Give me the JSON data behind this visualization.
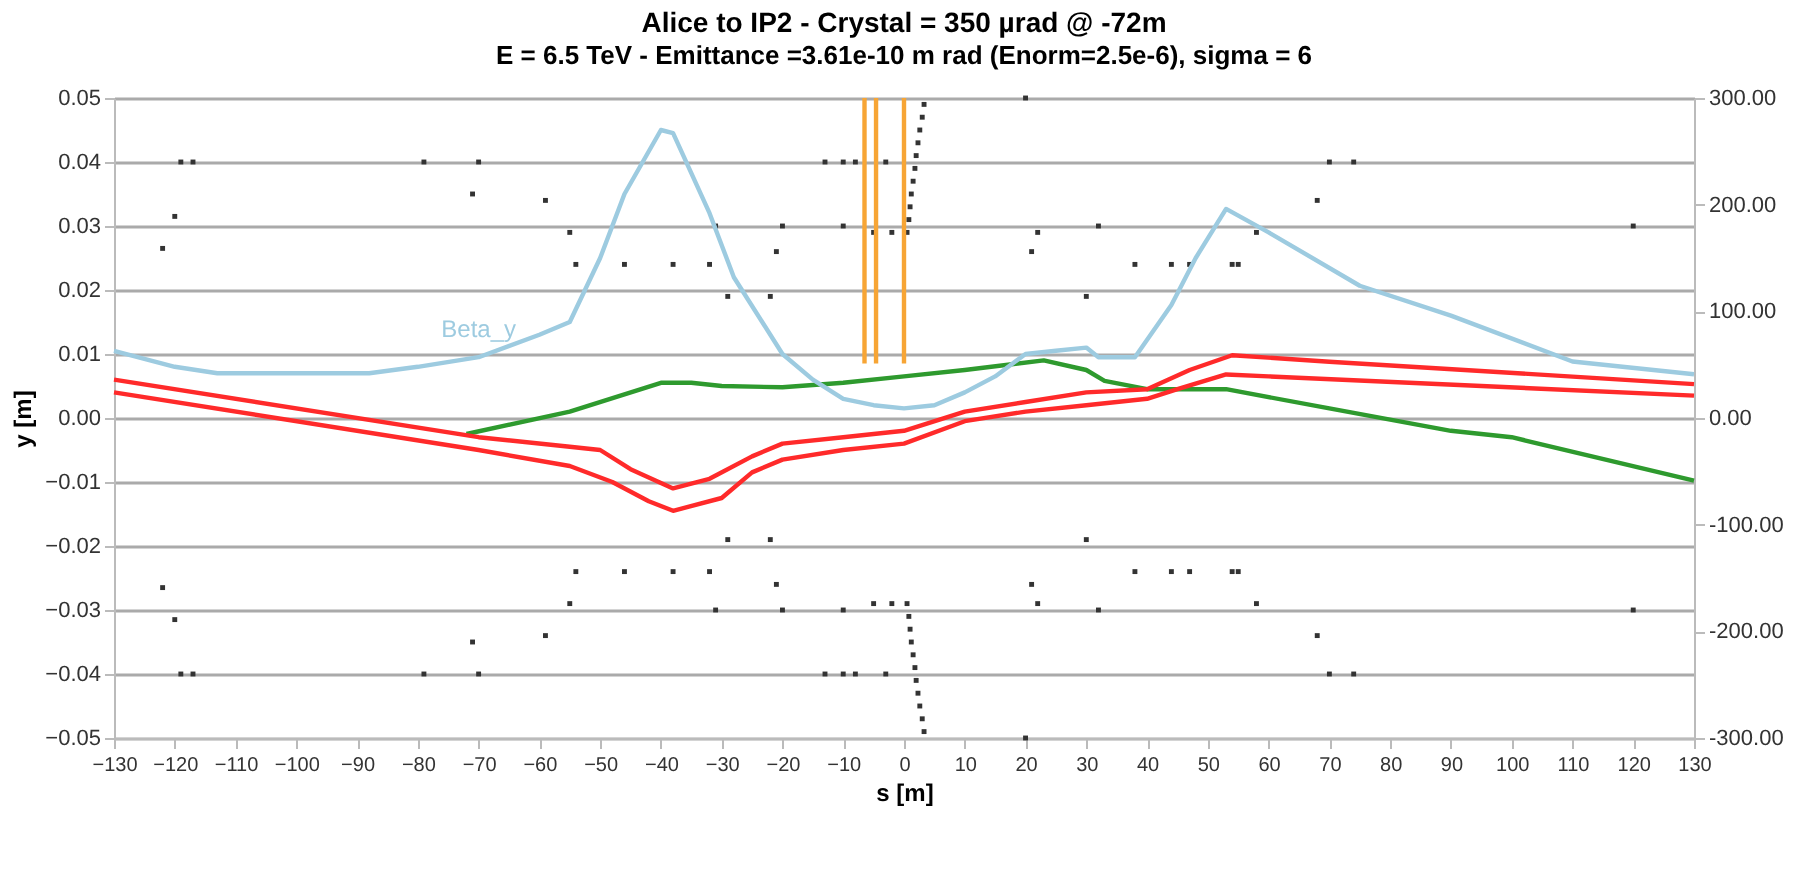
{
  "chart_data": {
    "type": "line",
    "title": "Alice to IP2 - Crystal = 350 µrad @ -72m",
    "subtitle": "E = 6.5 TeV - Emittance =3.61e-10 m rad (Enorm=2.5e-6), sigma = 6",
    "xlabel": "s [m]",
    "ylabel": "y [m]",
    "xlim": [
      -130,
      130
    ],
    "xticks": [
      -130,
      -120,
      -110,
      -100,
      -90,
      -80,
      -70,
      -60,
      -50,
      -40,
      -30,
      -20,
      -10,
      0,
      10,
      20,
      30,
      40,
      50,
      60,
      70,
      80,
      90,
      100,
      110,
      120,
      130
    ],
    "ylim": [
      -0.05,
      0.05
    ],
    "yticks": [
      -0.05,
      -0.04,
      -0.03,
      -0.02,
      -0.01,
      {
        "value": 0,
        "label": "0.00"
      },
      0.01,
      0.02,
      0.03,
      0.04,
      0.05
    ],
    "y2lim": [
      -300,
      300
    ],
    "y2ticks": [
      {
        "value": -300,
        "label": "-300.00"
      },
      {
        "value": -200,
        "label": "-200.00"
      },
      {
        "value": -100,
        "label": "-100.00"
      },
      {
        "value": 0,
        "label": "0.00"
      },
      {
        "value": 100,
        "label": "100.00"
      },
      {
        "value": 200,
        "label": "200.00"
      },
      {
        "value": 300,
        "label": "300.00"
      }
    ],
    "grid": "y",
    "line_style": "solid",
    "series": [
      {
        "name": "Beta_y",
        "axis": "y2",
        "color": "#9dcbe0",
        "marker": "none",
        "x": [
          -130,
          -120,
          -113,
          -88,
          -80,
          -70,
          -60,
          -55,
          -50,
          -46,
          -40,
          -38,
          -32,
          -28,
          -20,
          -15,
          -10,
          -5,
          0,
          5,
          10,
          15,
          20,
          25,
          30,
          32,
          38,
          44,
          48,
          53,
          60,
          75,
          90,
          110,
          130
        ],
        "values": [
          63,
          48,
          42,
          42,
          48,
          57,
          78,
          90,
          150,
          210,
          270,
          267,
          192,
          132,
          60,
          36,
          18,
          12,
          9,
          12,
          24,
          39,
          60,
          63,
          66,
          57,
          57,
          106,
          150,
          196,
          174,
          124,
          96,
          53,
          41
        ]
      },
      {
        "color": "#2e9a2e",
        "marker": "none",
        "x": [
          -72,
          -55,
          -40,
          -35,
          -30,
          -20,
          -10,
          0,
          10,
          23,
          30,
          33,
          40,
          53,
          70,
          90,
          100,
          130
        ],
        "values": [
          -0.0025,
          0.001,
          0.0055,
          0.0055,
          0.005,
          0.0048,
          0.0055,
          0.0065,
          0.0075,
          0.009,
          0.0075,
          0.0058,
          0.0045,
          0.0045,
          0.0015,
          -0.002,
          -0.003,
          -0.0098
        ]
      },
      {
        "color": "#ff2a2a",
        "marker": "none",
        "x": [
          -130,
          -70,
          -55,
          -50,
          -45,
          -38,
          -32,
          -25,
          -20,
          -10,
          0,
          10,
          20,
          30,
          40,
          47,
          54,
          70,
          130
        ],
        "values": [
          0.006,
          -0.003,
          -0.0045,
          -0.005,
          -0.008,
          -0.011,
          -0.0095,
          -0.006,
          -0.004,
          -0.003,
          -0.002,
          0.001,
          0.0025,
          0.004,
          0.0045,
          0.0075,
          0.0098,
          0.0088,
          0.0053
        ]
      },
      {
        "color": "#ff2a2a",
        "marker": "none",
        "x": [
          -130,
          -70,
          -55,
          -48,
          -42,
          -38,
          -30,
          -25,
          -20,
          -10,
          0,
          10,
          20,
          30,
          40,
          45,
          53,
          60,
          130
        ],
        "values": [
          0.004,
          -0.005,
          -0.0075,
          -0.01,
          -0.013,
          -0.0145,
          -0.0125,
          -0.0085,
          -0.0065,
          -0.005,
          -0.004,
          -0.0005,
          0.001,
          0.002,
          0.003,
          0.0045,
          0.0068,
          0.0065,
          0.0035
        ]
      },
      {
        "color": "#f7a535",
        "marker": "none",
        "x": [
          -6.5,
          -6.5
        ],
        "values": [
          0.0085,
          0.05
        ]
      },
      {
        "color": "#f7a535",
        "marker": "none",
        "x": [
          -4.6,
          -4.6
        ],
        "values": [
          0.0085,
          0.05
        ]
      },
      {
        "color": "#f7a535",
        "marker": "none",
        "x": [
          0,
          0
        ],
        "values": [
          0.0085,
          0.05
        ]
      },
      {
        "type": "scatter",
        "color": "#333333",
        "marker": "square",
        "x": [
          -119,
          -117,
          -120,
          -122,
          -79,
          -70,
          -71,
          -59,
          -55,
          -54,
          -46,
          -38,
          -32,
          -31,
          -29,
          -22,
          -21,
          -20,
          -13,
          -10,
          -8,
          -10,
          -3,
          -5,
          -2,
          0.5,
          0.8,
          1,
          1.2,
          1.5,
          1.8,
          2,
          2.3,
          2.6,
          3,
          3.3,
          20,
          22,
          21,
          32,
          30,
          38,
          44,
          47,
          54,
          55,
          58,
          68,
          70,
          74,
          120,
          -119,
          -117,
          -120,
          -122,
          -79,
          -70,
          -71,
          -59,
          -55,
          -54,
          -46,
          -38,
          -32,
          -31,
          -29,
          -22,
          -21,
          -20,
          -13,
          -10,
          -8,
          -10,
          -3,
          -5,
          -2,
          0.5,
          0.8,
          1,
          1.2,
          1.5,
          1.8,
          2,
          2.3,
          2.6,
          3,
          3.3,
          20,
          22,
          21,
          32,
          30,
          38,
          44,
          47,
          54,
          55,
          58,
          68,
          70,
          74,
          120
        ],
        "values": [
          0.04,
          0.04,
          0.0315,
          0.0265,
          0.04,
          0.04,
          0.035,
          0.034,
          0.029,
          0.024,
          0.024,
          0.024,
          0.024,
          0.03,
          0.019,
          0.019,
          0.026,
          0.03,
          0.04,
          0.04,
          0.04,
          0.03,
          0.04,
          0.029,
          0.029,
          0.029,
          0.031,
          0.033,
          0.035,
          0.037,
          0.039,
          0.041,
          0.043,
          0.045,
          0.047,
          0.049,
          0.05,
          0.029,
          0.026,
          0.03,
          0.019,
          0.024,
          0.024,
          0.024,
          0.024,
          0.024,
          0.029,
          0.034,
          0.04,
          0.04,
          0.03,
          -0.04,
          -0.04,
          -0.0315,
          -0.0265,
          -0.04,
          -0.04,
          -0.035,
          -0.034,
          -0.029,
          -0.024,
          -0.024,
          -0.024,
          -0.024,
          -0.03,
          -0.019,
          -0.019,
          -0.026,
          -0.03,
          -0.04,
          -0.04,
          -0.04,
          -0.03,
          -0.04,
          -0.029,
          -0.029,
          -0.029,
          -0.031,
          -0.033,
          -0.035,
          -0.037,
          -0.039,
          -0.041,
          -0.043,
          -0.045,
          -0.047,
          -0.049,
          -0.05,
          -0.029,
          -0.026,
          -0.03,
          -0.019,
          -0.024,
          -0.024,
          -0.024,
          -0.024,
          -0.024,
          -0.029,
          -0.034,
          -0.04,
          -0.04,
          -0.03
        ]
      }
    ]
  }
}
